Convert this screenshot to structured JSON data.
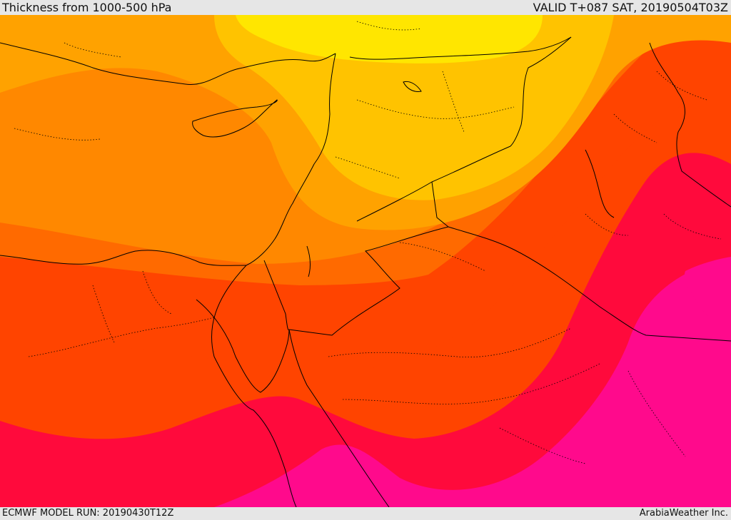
{
  "header": {
    "title": "Thickness from 1000-500 hPa",
    "valid": "VALID T+087 SAT, 20190504T03Z"
  },
  "footer": {
    "model_run": "ECMWF MODEL RUN: 20190430T12Z",
    "credit": "ArabiaWeather Inc."
  },
  "colors": {
    "band_1": "#ffe600",
    "band_2": "#ffc300",
    "band_3": "#ffa200",
    "band_4": "#ff8800",
    "band_5": "#ff6a00",
    "band_6": "#ff4400",
    "band_7": "#ff0a3c",
    "band_8": "#ff0a8c",
    "borders": "#000000"
  }
}
